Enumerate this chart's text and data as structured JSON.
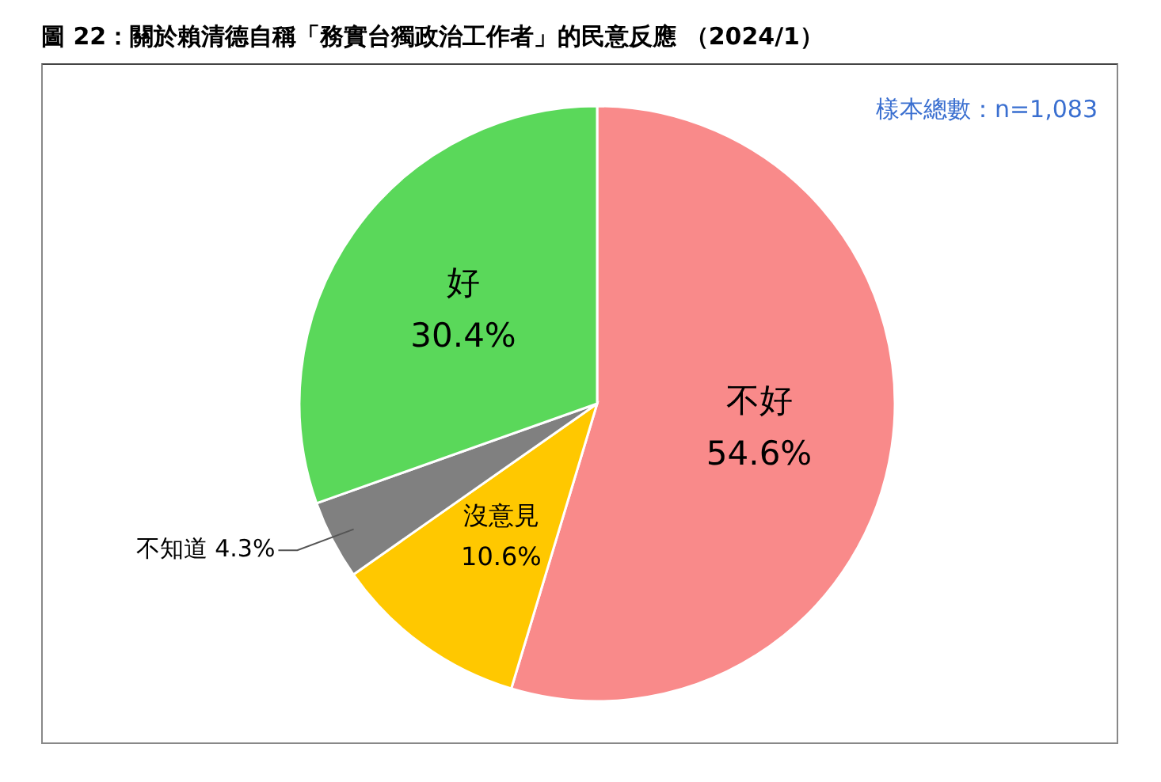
{
  "chart_data": {
    "type": "pie",
    "title": "圖 22：關於賴清德自稱「務實台獨政治工作者」的民意反應 （2024/1）",
    "annotations": [
      "樣本總數：n=1,083"
    ],
    "categories": [
      "不好",
      "沒意見",
      "不知道",
      "好"
    ],
    "values": [
      54.6,
      10.6,
      4.3,
      30.4
    ],
    "value_labels": [
      "54.6%",
      "10.6%",
      "4.3%",
      "30.4%"
    ],
    "colors": [
      "#f98a8a",
      "#ffc800",
      "#808080",
      "#5ad85a"
    ],
    "legend": false
  }
}
